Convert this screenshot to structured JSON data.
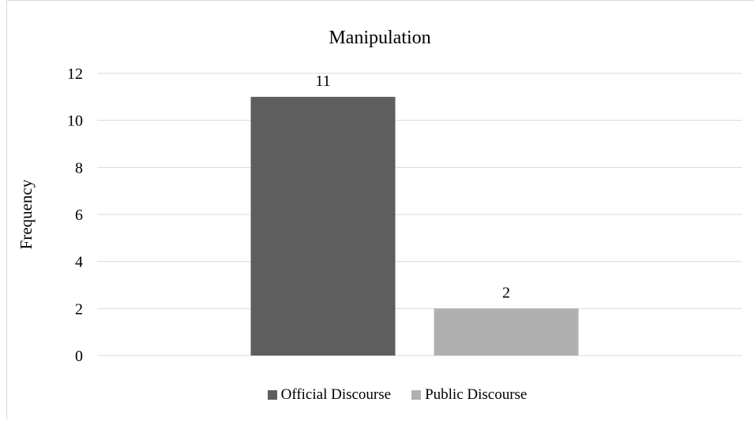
{
  "chart_data": {
    "type": "bar",
    "title": "Manipulation",
    "xlabel": "",
    "ylabel": "Frequency",
    "ylim": [
      0,
      12
    ],
    "yticks": [
      0,
      2,
      4,
      6,
      8,
      10,
      12
    ],
    "grid": true,
    "legend_position": "bottom",
    "categories": [
      "Manipulation"
    ],
    "series": [
      {
        "name": "Official Discourse",
        "values": [
          11
        ],
        "color": "#5e5e5e",
        "data_label": "11"
      },
      {
        "name": "Public Discourse",
        "values": [
          2
        ],
        "color": "#b0b0b0",
        "data_label": "2"
      }
    ]
  },
  "colors": {
    "gridline": "#d9d9d9",
    "axis": "#d9d9d9",
    "text": "#000000"
  }
}
